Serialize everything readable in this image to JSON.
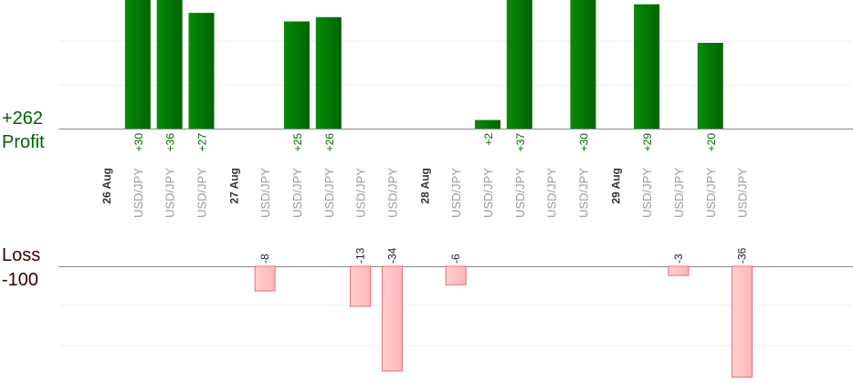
{
  "summary": {
    "profit_total": "+262",
    "profit_label": "Profit",
    "loss_label": "Loss",
    "loss_total": "-100"
  },
  "colors": {
    "profit": "#006400",
    "loss": "#ffb6b8",
    "loss_border": "#e0707a",
    "date_text": "#333333",
    "pair_text": "#999999",
    "grid": "#eeeeee",
    "baseline": "#888888"
  },
  "chart_data": {
    "type": "bar",
    "categories": [
      {
        "kind": "date",
        "label": "26 Aug"
      },
      {
        "kind": "trade",
        "label": "USD/JPY",
        "value": 30,
        "value_label": "+30"
      },
      {
        "kind": "trade",
        "label": "USD/JPY",
        "value": 36,
        "value_label": "+36"
      },
      {
        "kind": "trade",
        "label": "USD/JPY",
        "value": 27,
        "value_label": "+27"
      },
      {
        "kind": "date",
        "label": "27 Aug"
      },
      {
        "kind": "trade",
        "label": "USD/JPY",
        "value": -8,
        "value_label": "-8"
      },
      {
        "kind": "trade",
        "label": "USD/JPY",
        "value": 25,
        "value_label": "+25"
      },
      {
        "kind": "trade",
        "label": "USD/JPY",
        "value": 26,
        "value_label": "+26"
      },
      {
        "kind": "trade",
        "label": "USD/JPY",
        "value": -13,
        "value_label": "-13"
      },
      {
        "kind": "trade",
        "label": "USD/JPY",
        "value": -34,
        "value_label": "-34"
      },
      {
        "kind": "date",
        "label": "28 Aug"
      },
      {
        "kind": "trade",
        "label": "USD/JPY",
        "value": -6,
        "value_label": "-6"
      },
      {
        "kind": "trade",
        "label": "USD/JPY",
        "value": 2,
        "value_label": "+2"
      },
      {
        "kind": "trade",
        "label": "USD/JPY",
        "value": 37,
        "value_label": "+37"
      },
      {
        "kind": "trade",
        "label": "USD/JPY",
        "value": null,
        "value_label": ""
      },
      {
        "kind": "trade",
        "label": "USD/JPY",
        "value": 30,
        "value_label": "+30"
      },
      {
        "kind": "date",
        "label": "29 Aug"
      },
      {
        "kind": "trade",
        "label": "USD/JPY",
        "value": 29,
        "value_label": "+29"
      },
      {
        "kind": "trade",
        "label": "USD/JPY",
        "value": -3,
        "value_label": "-3"
      },
      {
        "kind": "trade",
        "label": "USD/JPY",
        "value": 20,
        "value_label": "+20"
      },
      {
        "kind": "trade",
        "label": "USD/JPY",
        "value": -36,
        "value_label": "-36"
      }
    ],
    "profit_axis_visible_max": 37,
    "loss_axis_visible_max": 34,
    "grid": true
  }
}
